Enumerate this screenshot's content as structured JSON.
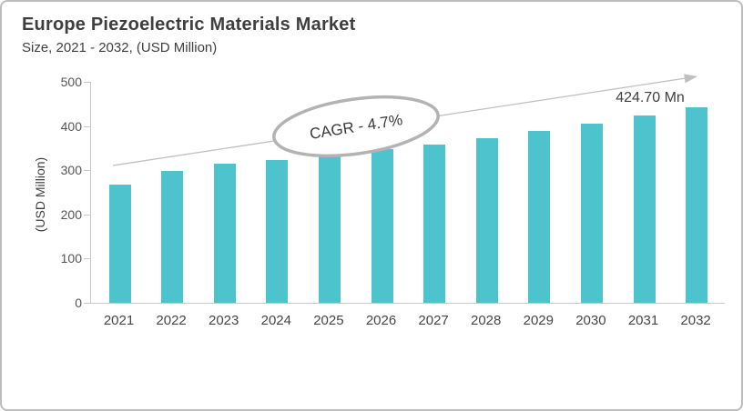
{
  "header": {
    "title": "Europe Piezoelectric Materials Market",
    "subtitle": "Size, 2021 - 2032, (USD Million)"
  },
  "chart_data": {
    "type": "bar",
    "title": "Europe Piezoelectric Materials Market",
    "subtitle": "Size, 2021 - 2032, (USD Million)",
    "xlabel": "",
    "ylabel": "(USD Million)",
    "ylim": [
      0,
      500
    ],
    "y_ticks": [
      0,
      100,
      200,
      300,
      400,
      500
    ],
    "grid": false,
    "legend_position": "none",
    "categories": [
      "2021",
      "2022",
      "2023",
      "2024",
      "2025",
      "2026",
      "2027",
      "2028",
      "2029",
      "2030",
      "2031",
      "2032"
    ],
    "values": [
      267,
      298,
      315,
      323,
      334,
      347,
      358,
      372,
      389,
      406,
      424.7,
      443
    ],
    "annotations": {
      "cagr_label": "CAGR - 4.7%",
      "value_label": "424.70 Mn"
    },
    "trend_arrow": {
      "direction": "up-right"
    }
  },
  "colors": {
    "bar": "#4DC3CD",
    "axis": "#c9c9c9",
    "arrow": "#bfbfbf",
    "ellipse_stroke": "#b3b3b3",
    "text_dark": "#3f3f3f",
    "text_tick": "#555555",
    "frame_border": "#bdbdbd"
  }
}
